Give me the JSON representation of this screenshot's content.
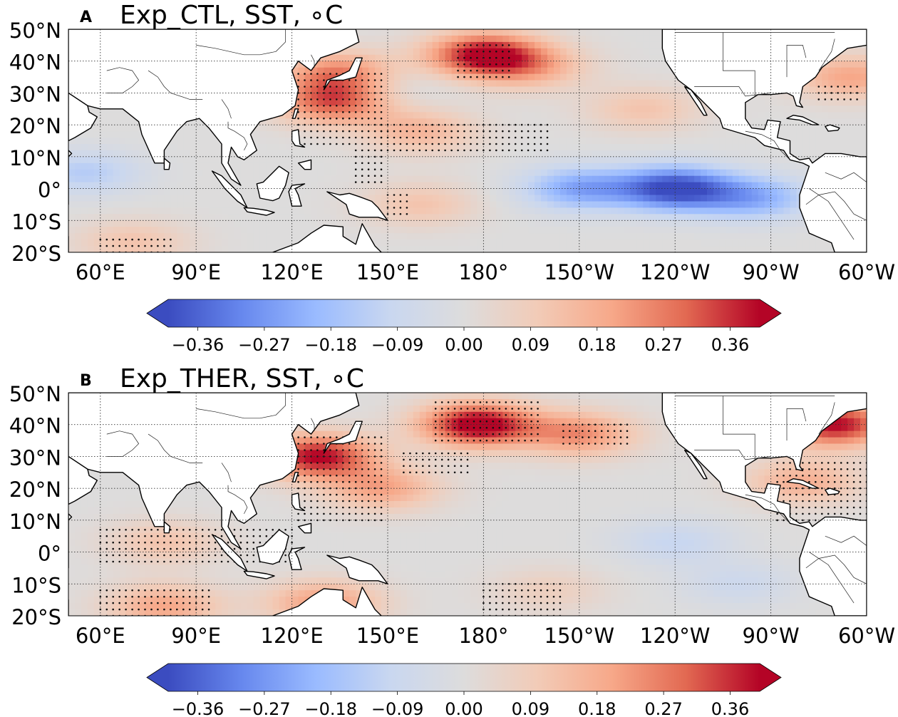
{
  "figure": {
    "panels": [
      {
        "letter": "A",
        "title": "Exp_CTL, SST, ∘C",
        "variable": "SST",
        "units": "°C",
        "hotspots": [
          {
            "lon": 180,
            "lat": 42,
            "value": 0.4
          },
          {
            "lon": 133,
            "lat": 27,
            "value": 0.3
          },
          {
            "lon": 135,
            "lat": 36,
            "value": 0.26
          },
          {
            "lon": 195,
            "lat": 38,
            "value": 0.16
          },
          {
            "lon": 160,
            "lat": 18,
            "value": 0.16
          },
          {
            "lon": 240,
            "lat": 0,
            "value": -0.4
          },
          {
            "lon": 210,
            "lat": 0,
            "value": -0.24
          },
          {
            "lon": 265,
            "lat": -3,
            "value": -0.22
          },
          {
            "lon": 55,
            "lat": 5,
            "value": -0.14
          },
          {
            "lon": 150,
            "lat": 32,
            "value": -0.06
          },
          {
            "lon": 160,
            "lat": -5,
            "value": 0.12
          },
          {
            "lon": 230,
            "lat": 25,
            "value": 0.12
          },
          {
            "lon": 295,
            "lat": 35,
            "value": 0.2
          },
          {
            "lon": 70,
            "lat": -17,
            "value": 0.12
          }
        ],
        "stipples": [
          {
            "lon": [
              122,
              148
            ],
            "lat": [
              14,
              36
            ]
          },
          {
            "lon": [
              148,
              200
            ],
            "lat": [
              12,
              21
            ]
          },
          {
            "lon": [
              140,
              148
            ],
            "lat": [
              2,
              12
            ]
          },
          {
            "lon": [
              172,
              188
            ],
            "lat": [
              35,
              46
            ]
          },
          {
            "lon": [
              150,
              156
            ],
            "lat": [
              -8,
              -2
            ]
          },
          {
            "lon": [
              60,
              82
            ],
            "lat": [
              -20,
              -15
            ]
          },
          {
            "lon": [
              285,
              298
            ],
            "lat": [
              28,
              32
            ]
          }
        ]
      },
      {
        "letter": "B",
        "title": "Exp_THER, SST, ∘C",
        "variable": "SST",
        "units": "°C",
        "hotspots": [
          {
            "lon": 178,
            "lat": 40,
            "value": 0.44
          },
          {
            "lon": 128,
            "lat": 30,
            "value": 0.4
          },
          {
            "lon": 210,
            "lat": 37,
            "value": 0.24
          },
          {
            "lon": 148,
            "lat": 20,
            "value": 0.2
          },
          {
            "lon": 290,
            "lat": 40,
            "value": 0.4
          },
          {
            "lon": 280,
            "lat": 22,
            "value": 0.18
          },
          {
            "lon": 80,
            "lat": -17,
            "value": 0.2
          },
          {
            "lon": 80,
            "lat": 3,
            "value": 0.12
          },
          {
            "lon": 130,
            "lat": -16,
            "value": 0.22
          },
          {
            "lon": 240,
            "lat": 3,
            "value": -0.1
          },
          {
            "lon": 260,
            "lat": -10,
            "value": -0.08
          },
          {
            "lon": 200,
            "lat": -12,
            "value": 0.08
          }
        ],
        "stipples": [
          {
            "lon": [
              122,
              148
            ],
            "lat": [
              10,
              36
            ]
          },
          {
            "lon": [
              165,
              198
            ],
            "lat": [
              35,
              48
            ]
          },
          {
            "lon": [
              205,
              225
            ],
            "lat": [
              34,
              40
            ]
          },
          {
            "lon": [
              155,
              175
            ],
            "lat": [
              25,
              31
            ]
          },
          {
            "lon": [
              60,
              120
            ],
            "lat": [
              -3,
              7
            ]
          },
          {
            "lon": [
              60,
              95
            ],
            "lat": [
              -20,
              -12
            ]
          },
          {
            "lon": [
              272,
              300
            ],
            "lat": [
              10,
              28
            ]
          },
          {
            "lon": [
              180,
              205
            ],
            "lat": [
              -20,
              -10
            ]
          }
        ]
      }
    ],
    "map": {
      "lon_range_east": [
        50,
        300
      ],
      "lat_range": [
        -20,
        50
      ],
      "lon_ticks": [
        {
          "lon": 60,
          "label": "60°E"
        },
        {
          "lon": 90,
          "label": "90°E"
        },
        {
          "lon": 120,
          "label": "120°E"
        },
        {
          "lon": 150,
          "label": "150°E"
        },
        {
          "lon": 180,
          "label": "180°"
        },
        {
          "lon": 210,
          "label": "150°W"
        },
        {
          "lon": 240,
          "label": "120°W"
        },
        {
          "lon": 270,
          "label": "90°W"
        },
        {
          "lon": 300,
          "label": "60°W"
        }
      ],
      "lat_ticks": [
        {
          "lat": 50,
          "label": "50°N"
        },
        {
          "lat": 40,
          "label": "40°N"
        },
        {
          "lat": 30,
          "label": "30°N"
        },
        {
          "lat": 20,
          "label": "20°N"
        },
        {
          "lat": 10,
          "label": "10°N"
        },
        {
          "lat": 0,
          "label": "0°"
        },
        {
          "lat": -10,
          "label": "10°S"
        },
        {
          "lat": -20,
          "label": "20°S"
        }
      ]
    },
    "colorbar": {
      "colormap": "coolwarm",
      "range": [
        -0.4,
        0.4
      ],
      "extend": "both",
      "ticks": [
        -0.36,
        -0.27,
        -0.18,
        -0.09,
        0.0,
        0.09,
        0.18,
        0.27,
        0.36
      ],
      "tick_labels": [
        "−0.36",
        "−0.27",
        "−0.18",
        "−0.09",
        "0.00",
        "0.09",
        "0.18",
        "0.27",
        "0.36"
      ],
      "stops": [
        "#3b4cc0",
        "#6788ee",
        "#9abbff",
        "#c9d7f0",
        "#dddcdc",
        "#f2cbb7",
        "#f7a889",
        "#e26952",
        "#b40426"
      ]
    }
  }
}
